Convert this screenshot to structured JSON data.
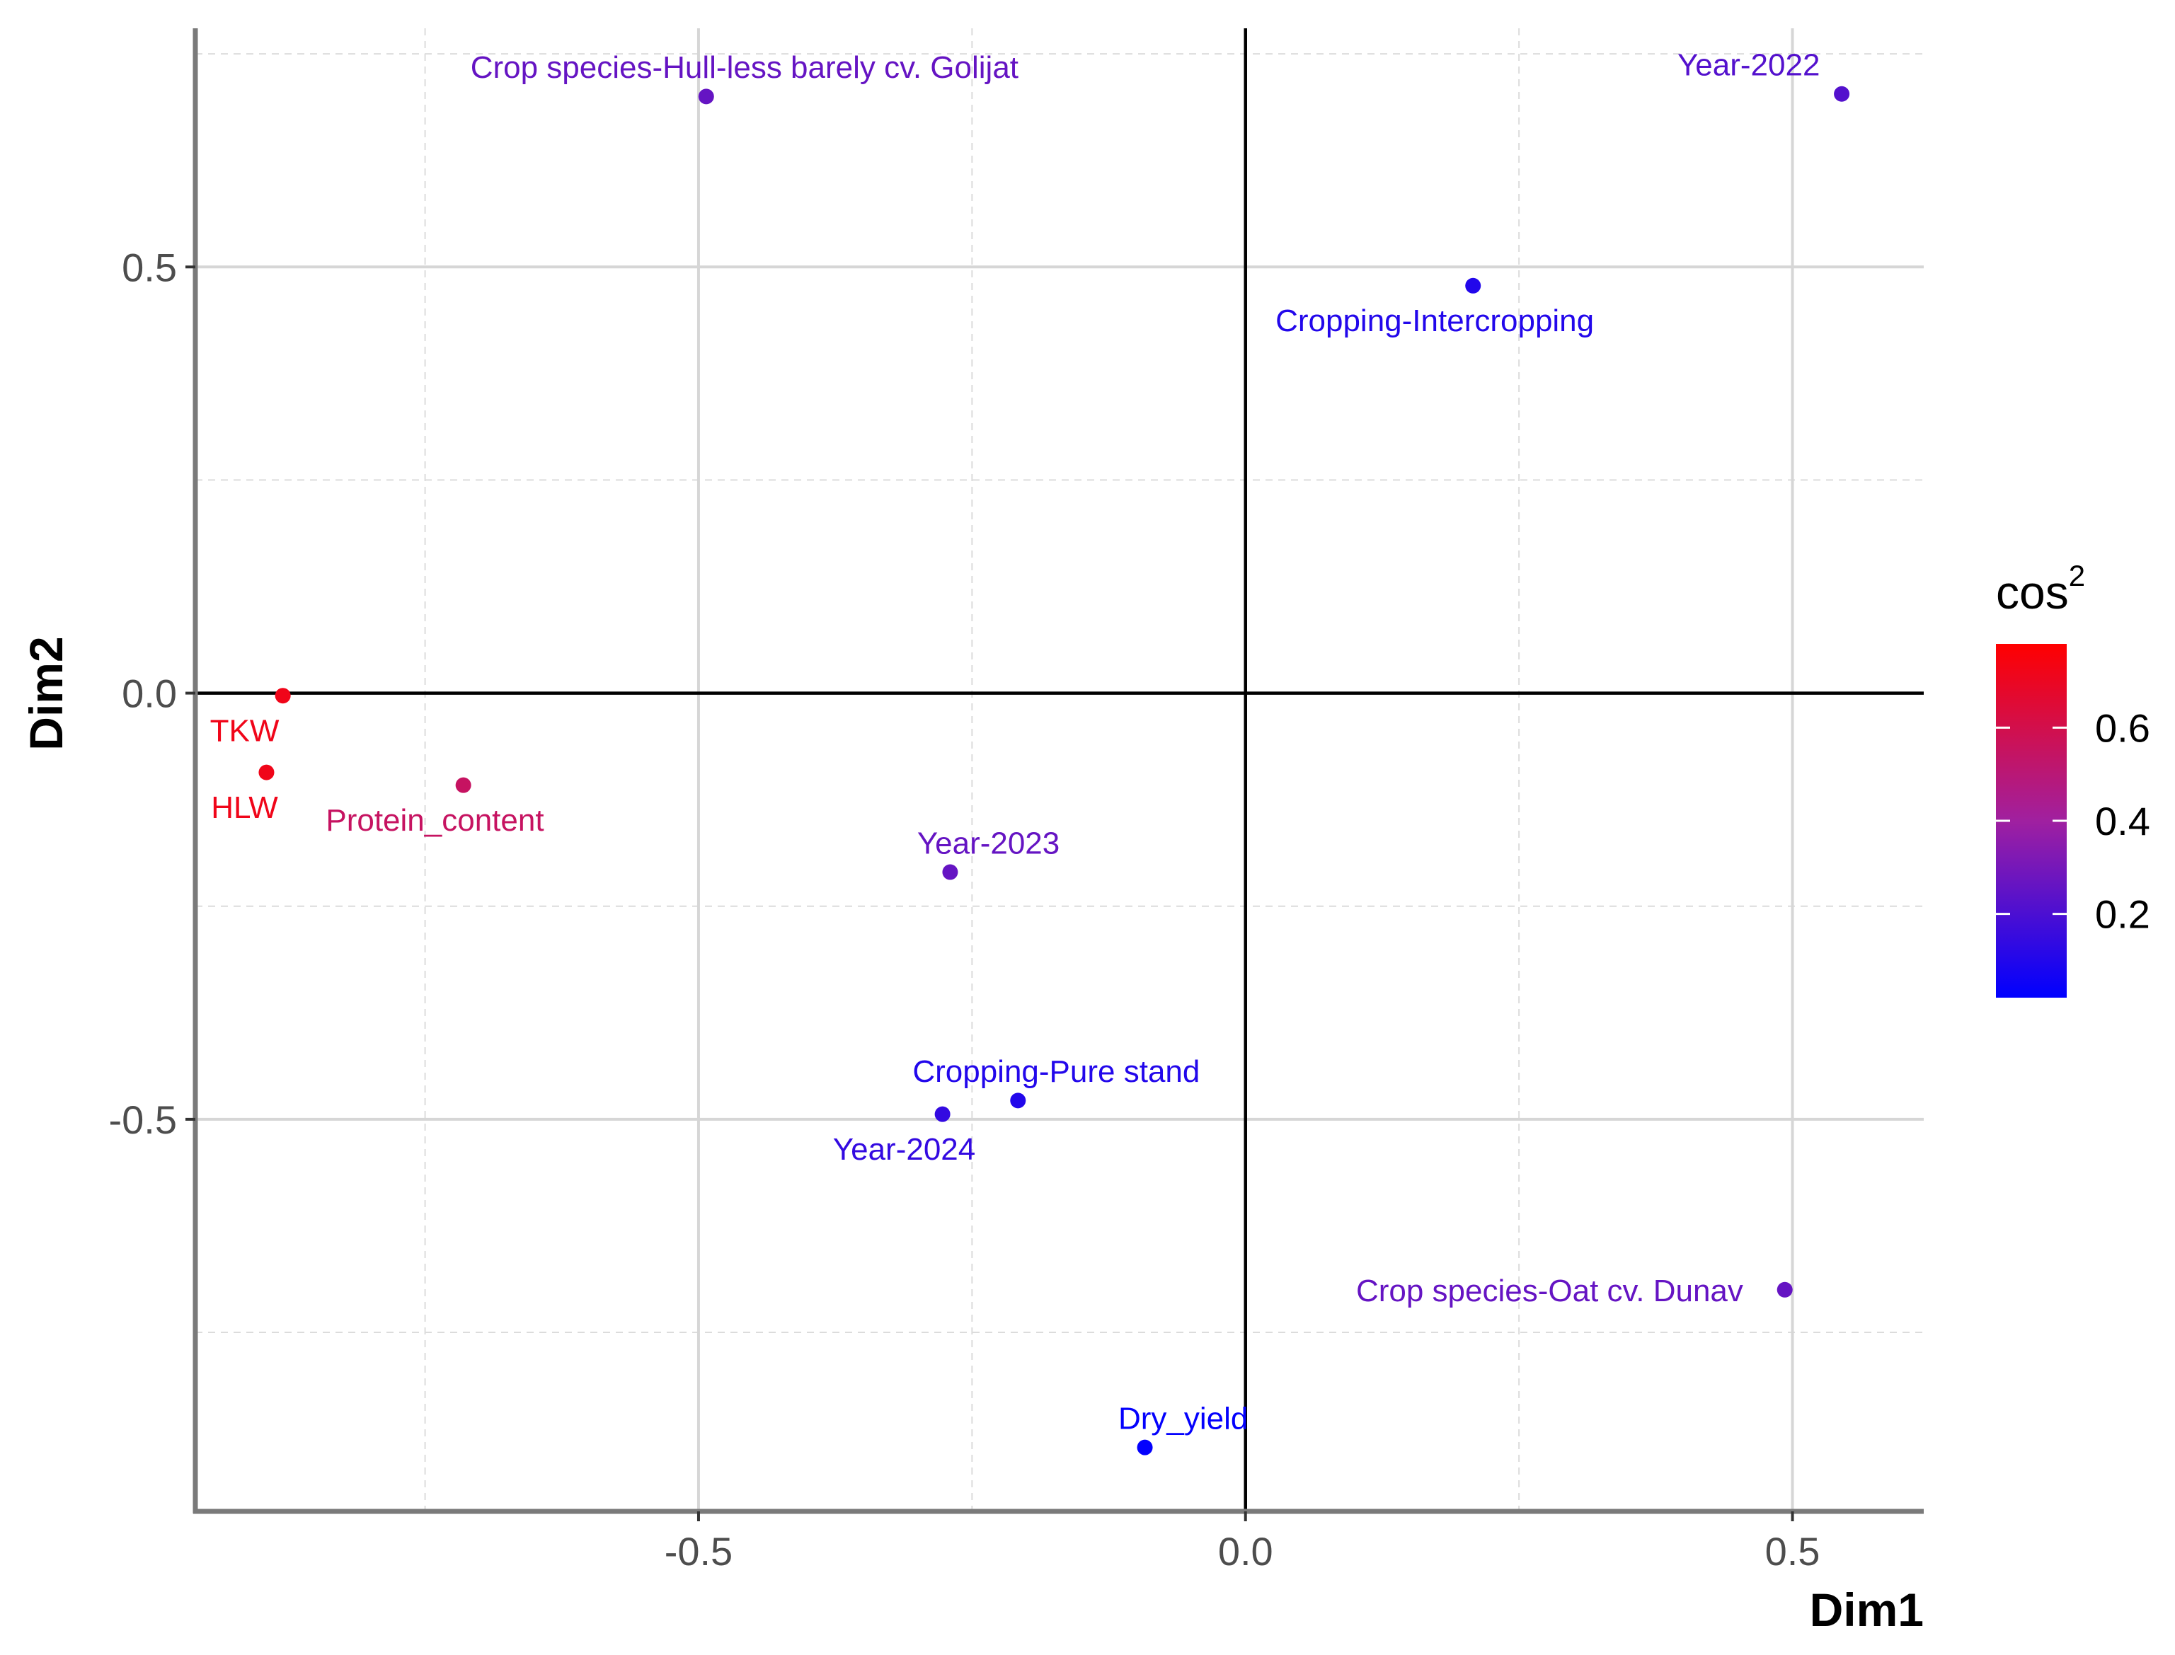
{
  "chart_data": {
    "type": "scatter",
    "title": "",
    "xlabel": "Dim1",
    "ylabel": "Dim2",
    "xlim": [
      -0.96,
      0.62
    ],
    "ylim": [
      -0.96,
      0.78
    ],
    "x_major_ticks": [
      -0.5,
      0.0,
      0.5
    ],
    "x_tick_labels": [
      "-0.5",
      "0.0",
      "0.5"
    ],
    "y_major_ticks": [
      -0.5,
      0.0,
      0.5
    ],
    "y_tick_labels": [
      "-0.5",
      "0.0",
      "0.5"
    ],
    "x_minor_ticks": [
      -0.75,
      -0.25,
      0.25
    ],
    "y_minor_ticks": [
      -0.75,
      -0.25,
      0.25,
      0.75
    ],
    "grid": true,
    "reference_lines": {
      "x": 0,
      "y": 0
    },
    "points": [
      {
        "label": "Crop species-Hull-less barely cv. Golijat",
        "x": -0.493,
        "y": 0.7,
        "cos2": 0.26,
        "label_dx": 0.035,
        "label_dy": 0.035,
        "anchor": "middle"
      },
      {
        "label": "Year-2022",
        "x": 0.545,
        "y": 0.703,
        "cos2": 0.22,
        "label_dx": -0.085,
        "label_dy": 0.035,
        "anchor": "middle"
      },
      {
        "label": "Cropping-Intercropping",
        "x": 0.208,
        "y": 0.478,
        "cos2": 0.1,
        "label_dx": -0.035,
        "label_dy": -0.04,
        "anchor": "middle"
      },
      {
        "label": "TKW",
        "x": -0.88,
        "y": -0.003,
        "cos2": 0.72,
        "label_dx": -0.035,
        "label_dy": -0.04,
        "anchor": "middle"
      },
      {
        "label": "HLW",
        "x": -0.895,
        "y": -0.093,
        "cos2": 0.72,
        "label_dx": -0.02,
        "label_dy": -0.04,
        "anchor": "middle"
      },
      {
        "label": "Protein_content",
        "x": -0.715,
        "y": -0.108,
        "cos2": 0.55,
        "label_dx": -0.026,
        "label_dy": -0.04,
        "anchor": "middle"
      },
      {
        "label": "Year-2023",
        "x": -0.27,
        "y": -0.21,
        "cos2": 0.26,
        "label_dx": 0.035,
        "label_dy": 0.035,
        "anchor": "middle"
      },
      {
        "label": "Cropping-Pure stand",
        "x": -0.208,
        "y": -0.478,
        "cos2": 0.1,
        "label_dx": 0.035,
        "label_dy": 0.035,
        "anchor": "middle"
      },
      {
        "label": "Year-2024",
        "x": -0.277,
        "y": -0.494,
        "cos2": 0.14,
        "label_dx": -0.035,
        "label_dy": -0.04,
        "anchor": "middle"
      },
      {
        "label": "Crop species-Oat cv. Dunav",
        "x": 0.493,
        "y": -0.7,
        "cos2": 0.26,
        "label_dx": -0.215,
        "label_dy": 0.0,
        "anchor": "middle"
      },
      {
        "label": "Dry_yield",
        "x": -0.092,
        "y": -0.885,
        "cos2": 0.03,
        "label_dx": 0.035,
        "label_dy": 0.035,
        "anchor": "middle"
      }
    ],
    "legend": {
      "title": "cos",
      "title_superscript": "2",
      "position": "right",
      "range": [
        0.02,
        0.78
      ],
      "ticks": [
        0.2,
        0.4,
        0.6
      ],
      "tick_labels": [
        "0.2",
        "0.4",
        "0.6"
      ],
      "gradient": {
        "low": "#0000ff",
        "mid": "#a020a0",
        "high": "#ff0000"
      }
    }
  }
}
